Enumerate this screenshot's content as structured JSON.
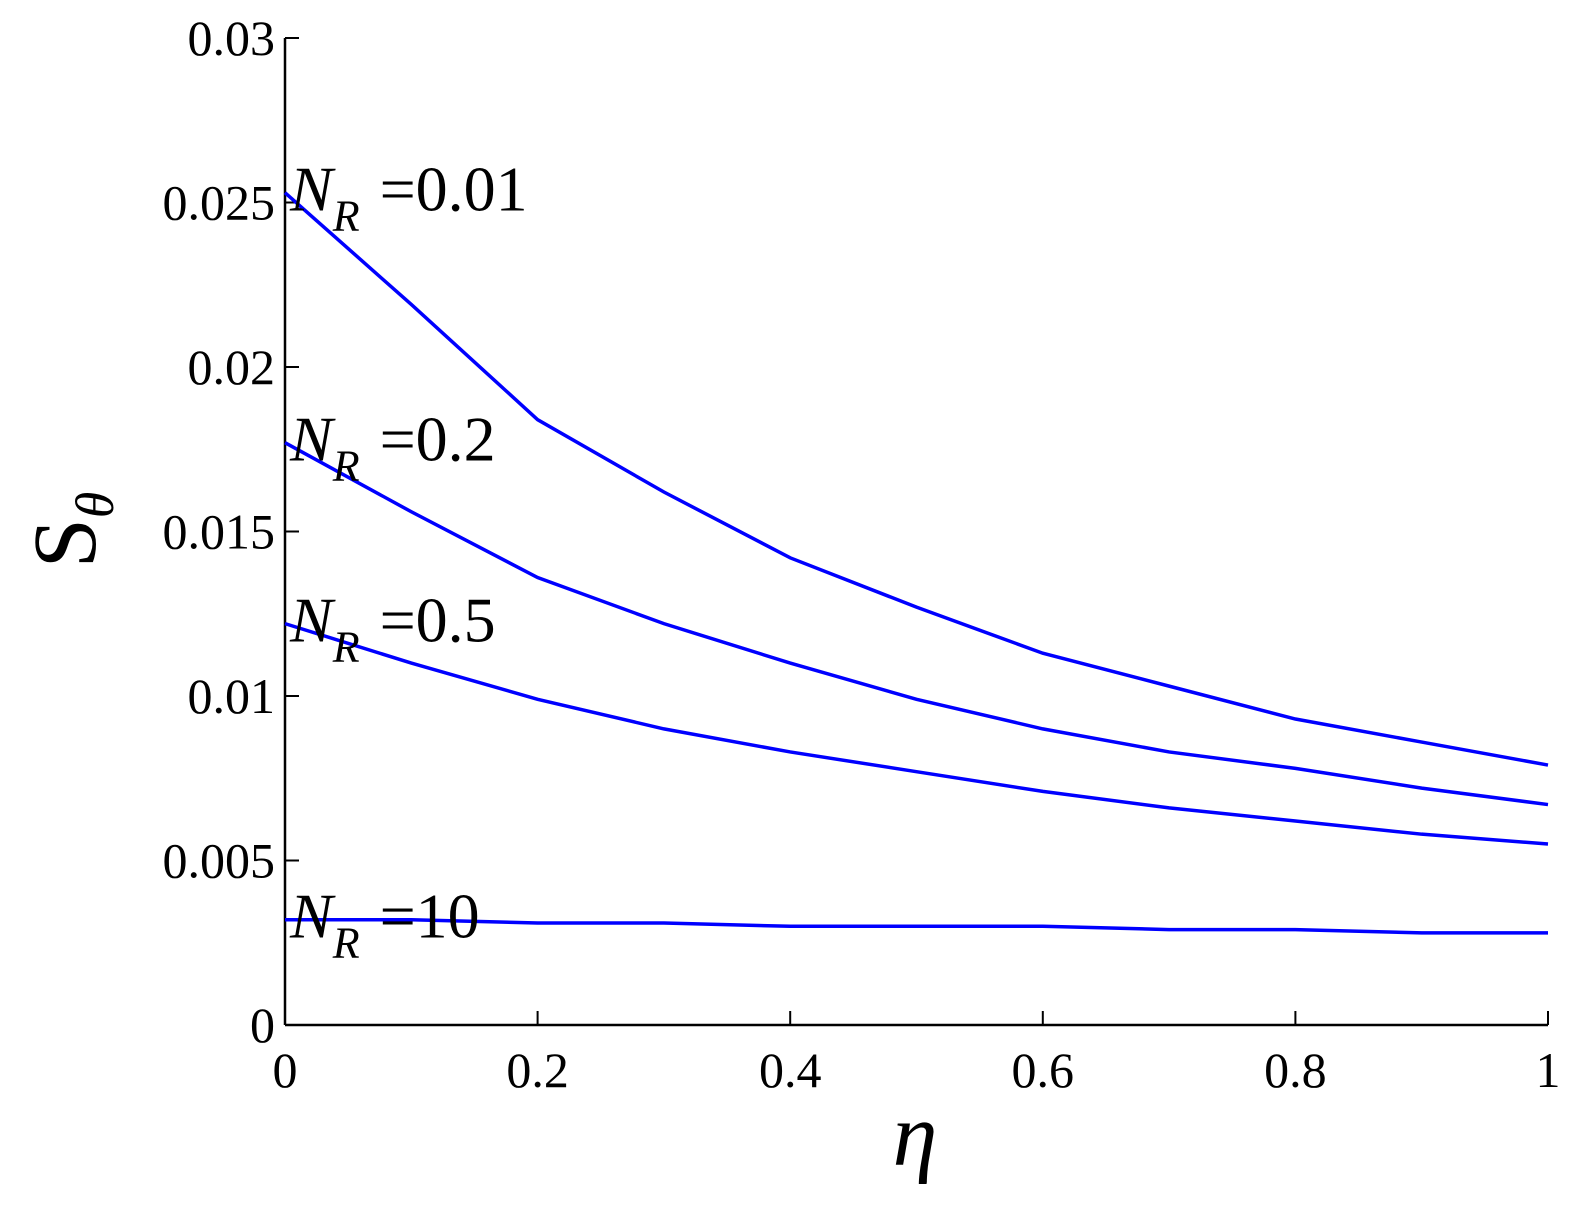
{
  "chart_data": {
    "type": "line",
    "x_label": "η",
    "y_label": {
      "symbol": "S",
      "subscript": "θ"
    },
    "x": [
      0,
      0.1,
      0.2,
      0.3,
      0.4,
      0.5,
      0.6,
      0.7,
      0.8,
      0.9,
      1
    ],
    "series": [
      {
        "name": {
          "symbol": "N",
          "subscript": "R",
          "text": "=0.01"
        },
        "color": "#0000ff",
        "values": [
          0.0253,
          0.0219,
          0.0184,
          0.0162,
          0.0142,
          0.0127,
          0.0113,
          0.0103,
          0.0093,
          0.0086,
          0.0079
        ]
      },
      {
        "name": {
          "symbol": "N",
          "subscript": "R",
          "text": "=0.2"
        },
        "color": "#0000ff",
        "values": [
          0.0177,
          0.0156,
          0.0136,
          0.0122,
          0.011,
          0.0099,
          0.009,
          0.0083,
          0.0078,
          0.0072,
          0.0067
        ]
      },
      {
        "name": {
          "symbol": "N",
          "subscript": "R",
          "text": "=0.5"
        },
        "color": "#0000ff",
        "values": [
          0.0122,
          0.011,
          0.0099,
          0.009,
          0.0083,
          0.0077,
          0.0071,
          0.0066,
          0.0062,
          0.0058,
          0.0055
        ]
      },
      {
        "name": {
          "symbol": "N",
          "subscript": "R",
          "text": "=10"
        },
        "color": "#0000ff",
        "values": [
          0.0032,
          0.0032,
          0.0031,
          0.0031,
          0.003,
          0.003,
          0.003,
          0.0029,
          0.0029,
          0.0028,
          0.0028
        ]
      }
    ],
    "xlim": [
      0,
      1
    ],
    "ylim": [
      0,
      0.03
    ],
    "xticks": [
      0,
      0.2,
      0.4,
      0.6,
      0.8,
      1
    ],
    "yticks": [
      0,
      0.005,
      0.01,
      0.015,
      0.02,
      0.025,
      0.03
    ],
    "grid": false
  }
}
